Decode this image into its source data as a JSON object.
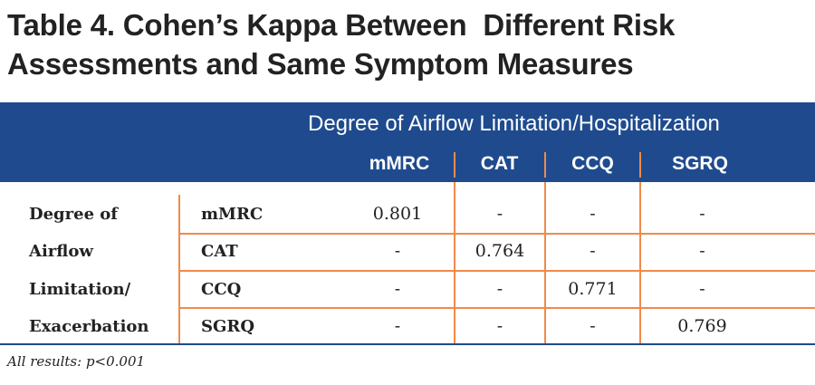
{
  "title": {
    "line1": "Table 4. Cohen’s Kappa Between  Different Risk",
    "line2": "Assessments and Same Symptom Measures"
  },
  "header": {
    "group_label": "Degree of Airflow Limitation/Hospitalization",
    "columns": [
      "mMRC",
      "CAT",
      "CCQ",
      "SGRQ"
    ]
  },
  "row_group_label": [
    "Degree of",
    "Airflow",
    "Limitation/",
    "Exacerbation"
  ],
  "rows": [
    {
      "label": "mMRC",
      "values": [
        "0.801",
        "-",
        "-",
        "-"
      ]
    },
    {
      "label": "CAT",
      "values": [
        "-",
        "0.764",
        "-",
        "-"
      ]
    },
    {
      "label": "CCQ",
      "values": [
        "-",
        "-",
        "0.771",
        "-"
      ]
    },
    {
      "label": "SGRQ",
      "values": [
        "-",
        "-",
        "-",
        "0.769"
      ]
    }
  ],
  "footnote": "All results: p<0.001",
  "colors": {
    "header_bg": "#1f4b8e",
    "rule": "#f08a4b"
  }
}
